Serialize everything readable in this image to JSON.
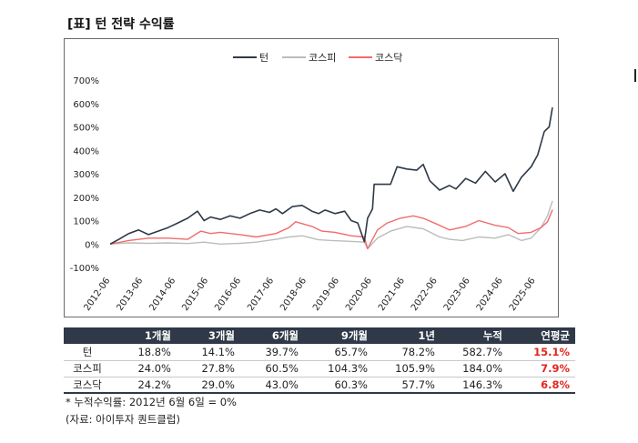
{
  "title": "[표] 턴 전략 수익률",
  "chart_data": {
    "type": "line",
    "y_unit": "%",
    "ylim": [
      -100,
      700
    ],
    "yticks": [
      "700%",
      "600%",
      "500%",
      "400%",
      "300%",
      "200%",
      "100%",
      "0%",
      "-100%"
    ],
    "ytick_values": [
      700,
      600,
      500,
      400,
      300,
      200,
      100,
      0,
      -100
    ],
    "xticks": [
      "2012-06",
      "2013-06",
      "2014-06",
      "2015-06",
      "2016-06",
      "2017-06",
      "2018-06",
      "2019-06",
      "2020-06",
      "2021-06",
      "2022-06",
      "2023-06",
      "2024-06",
      "2025-06"
    ],
    "xlim": [
      2012.43,
      2025.95
    ],
    "legend_position": "top-center",
    "series": [
      {
        "name": "턴",
        "color": "#2f3948",
        "x": [
          2012.43,
          2012.7,
          2013.0,
          2013.3,
          2013.6,
          2013.9,
          2014.2,
          2014.5,
          2014.8,
          2015.1,
          2015.3,
          2015.5,
          2015.8,
          2016.1,
          2016.4,
          2016.7,
          2017.0,
          2017.3,
          2017.5,
          2017.7,
          2018.0,
          2018.3,
          2018.6,
          2018.8,
          2019.0,
          2019.3,
          2019.6,
          2019.8,
          2020.0,
          2020.2,
          2020.3,
          2020.45,
          2020.5,
          2021.0,
          2021.2,
          2021.5,
          2021.8,
          2022.0,
          2022.2,
          2022.5,
          2022.8,
          2023.0,
          2023.3,
          2023.6,
          2023.9,
          2024.2,
          2024.5,
          2024.75,
          2025.0,
          2025.3,
          2025.5,
          2025.7,
          2025.85,
          2025.95
        ],
        "values": [
          0,
          20,
          45,
          60,
          40,
          55,
          70,
          90,
          110,
          140,
          100,
          115,
          105,
          120,
          110,
          130,
          145,
          135,
          150,
          130,
          160,
          165,
          140,
          130,
          145,
          130,
          140,
          100,
          90,
          10,
          110,
          150,
          255,
          255,
          330,
          320,
          315,
          340,
          270,
          230,
          250,
          235,
          280,
          260,
          310,
          265,
          300,
          225,
          285,
          330,
          380,
          480,
          500,
          583
        ]
      },
      {
        "name": "코스피",
        "color": "#bcbcbc",
        "x": [
          2012.43,
          2013.0,
          2013.6,
          2014.2,
          2014.8,
          2015.3,
          2015.8,
          2016.4,
          2016.9,
          2017.5,
          2017.9,
          2018.3,
          2018.8,
          2019.2,
          2019.7,
          2020.2,
          2020.3,
          2020.6,
          2021.0,
          2021.5,
          2022.0,
          2022.5,
          2022.8,
          2023.2,
          2023.7,
          2024.2,
          2024.6,
          2025.0,
          2025.3,
          2025.6,
          2025.8,
          2025.95
        ],
        "values": [
          0,
          5,
          3,
          5,
          2,
          8,
          0,
          3,
          8,
          20,
          30,
          35,
          18,
          15,
          12,
          8,
          -20,
          25,
          55,
          75,
          65,
          30,
          20,
          15,
          30,
          25,
          40,
          15,
          25,
          70,
          120,
          184
        ]
      },
      {
        "name": "코스닥",
        "color": "#f06c6c",
        "x": [
          2012.43,
          2013.0,
          2013.6,
          2014.2,
          2014.8,
          2015.2,
          2015.5,
          2015.8,
          2016.4,
          2016.9,
          2017.5,
          2017.9,
          2018.1,
          2018.6,
          2018.9,
          2019.3,
          2019.8,
          2020.2,
          2020.3,
          2020.6,
          2020.9,
          2021.3,
          2021.7,
          2022.0,
          2022.5,
          2022.8,
          2023.3,
          2023.7,
          2024.2,
          2024.6,
          2024.9,
          2025.3,
          2025.6,
          2025.8,
          2025.95
        ],
        "values": [
          0,
          15,
          25,
          25,
          20,
          55,
          45,
          50,
          40,
          30,
          45,
          70,
          95,
          75,
          55,
          50,
          35,
          30,
          -20,
          60,
          90,
          110,
          120,
          110,
          80,
          60,
          75,
          100,
          80,
          70,
          45,
          50,
          70,
          95,
          146
        ]
      }
    ]
  },
  "table": {
    "headers": [
      "",
      "1개월",
      "3개월",
      "6개월",
      "9개월",
      "1년",
      "누적",
      "연평균"
    ],
    "rows": [
      {
        "label": "턴",
        "values": [
          "18.8%",
          "14.1%",
          "39.7%",
          "65.7%",
          "78.2%",
          "582.7%"
        ],
        "cagr": "15.1%"
      },
      {
        "label": "코스피",
        "values": [
          "24.0%",
          "27.8%",
          "60.5%",
          "104.3%",
          "105.9%",
          "184.0%"
        ],
        "cagr": "7.9%"
      },
      {
        "label": "코스닥",
        "values": [
          "24.2%",
          "29.0%",
          "43.0%",
          "60.3%",
          "57.7%",
          "146.3%"
        ],
        "cagr": "6.8%"
      }
    ]
  },
  "footnote": "* 누적수익률: 2012년 6월 6일 = 0%",
  "source": "(자료: 아이투자 퀀트클럽)"
}
